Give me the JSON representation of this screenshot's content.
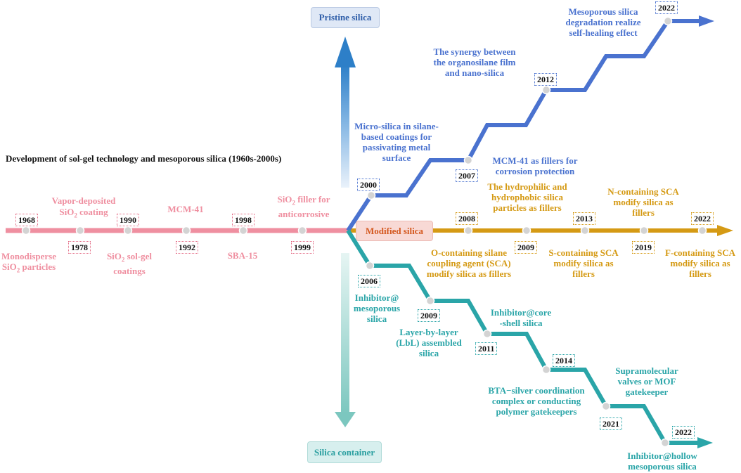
{
  "title": "Development of sol-gel technology and mesoporous silica (1960s-2000s)",
  "boxes": {
    "pristine": "Pristine silica",
    "modified": "Modified silica",
    "container": "Silica container"
  },
  "colors": {
    "pink": "#ef8fa0",
    "blue": "#4a72cf",
    "gold": "#d59a14",
    "teal": "#2aa5a8"
  },
  "pink": {
    "years": [
      "1968",
      "1978",
      "1990",
      "1992",
      "1998",
      "1999"
    ],
    "labels": {
      "l1968": "Monodisperse\nSiO2 particles",
      "l1978a": "Vapor-deposited",
      "l1978b": "SiO2 coating",
      "l1990": "SiO2 sol-gel\ncoatings",
      "l1992": "MCM-41",
      "l1998": "SBA-15",
      "l1999": "SiO2 filler for\nanticorrosive"
    }
  },
  "blue": {
    "years": [
      "2000",
      "2007",
      "2012",
      "2022"
    ],
    "labels": {
      "l2000": "Micro-silica in silane-\nbased coatings for\npassivating metal\nsurface",
      "l2007": "MCM-41 as fillers for\ncorrosion protection",
      "l2012": "The synergy between\nthe organosilane film\nand  nano-silica",
      "l2022": "Mesoporous silica\ndegradation realize\nself-healing effect"
    }
  },
  "gold": {
    "years": [
      "2008",
      "2009",
      "2013",
      "2019",
      "2022"
    ],
    "labels": {
      "l2008": "O-containing silane\ncoupling agent (SCA)\nmodify silica as fillers",
      "l2009": "The hydrophilic and\nhydrophobic silica\nparticles as fillers",
      "l2013": "S-containing SCA\nmodify silica  as\nfillers",
      "l2019": "N-containing SCA\nmodify silica as\nfillers",
      "l2022": "F-containing SCA\nmodify silica  as\nfillers"
    }
  },
  "teal": {
    "years": [
      "2006",
      "2009",
      "2011",
      "2014",
      "2021",
      "2022"
    ],
    "labels": {
      "l2006": "Inhibitor@\nmesoporous\nsilica",
      "l2009": "Layer-by-layer\n(LbL) assembled\nsilica",
      "l2011": "Inhibitor@core\n-shell silica",
      "l2014": "BTA−silver coordination\ncomplex or conducting\npolymer gatekeepers",
      "l2021": "Supramolecular\nvalves or MOF\ngatekeeper",
      "l2022": "Inhibitor@hollow\nmesoporous silica"
    }
  }
}
